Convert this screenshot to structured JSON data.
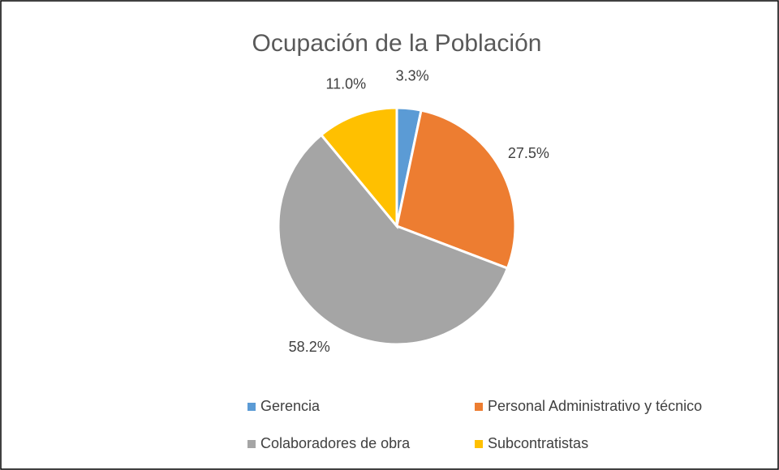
{
  "chart_data": {
    "type": "pie",
    "title": "Ocupación de la Población",
    "categories": [
      "Gerencia",
      "Personal Administrativo y técnico",
      "Colaboradores de obra",
      "Subcontratistas"
    ],
    "values": [
      3.3,
      27.5,
      58.2,
      11.0
    ],
    "value_labels": [
      "3.3%",
      "27.5%",
      "58.2%",
      "11.0%"
    ],
    "colors": [
      "#5b9bd5",
      "#ed7d31",
      "#a5a5a5",
      "#ffc000"
    ]
  }
}
